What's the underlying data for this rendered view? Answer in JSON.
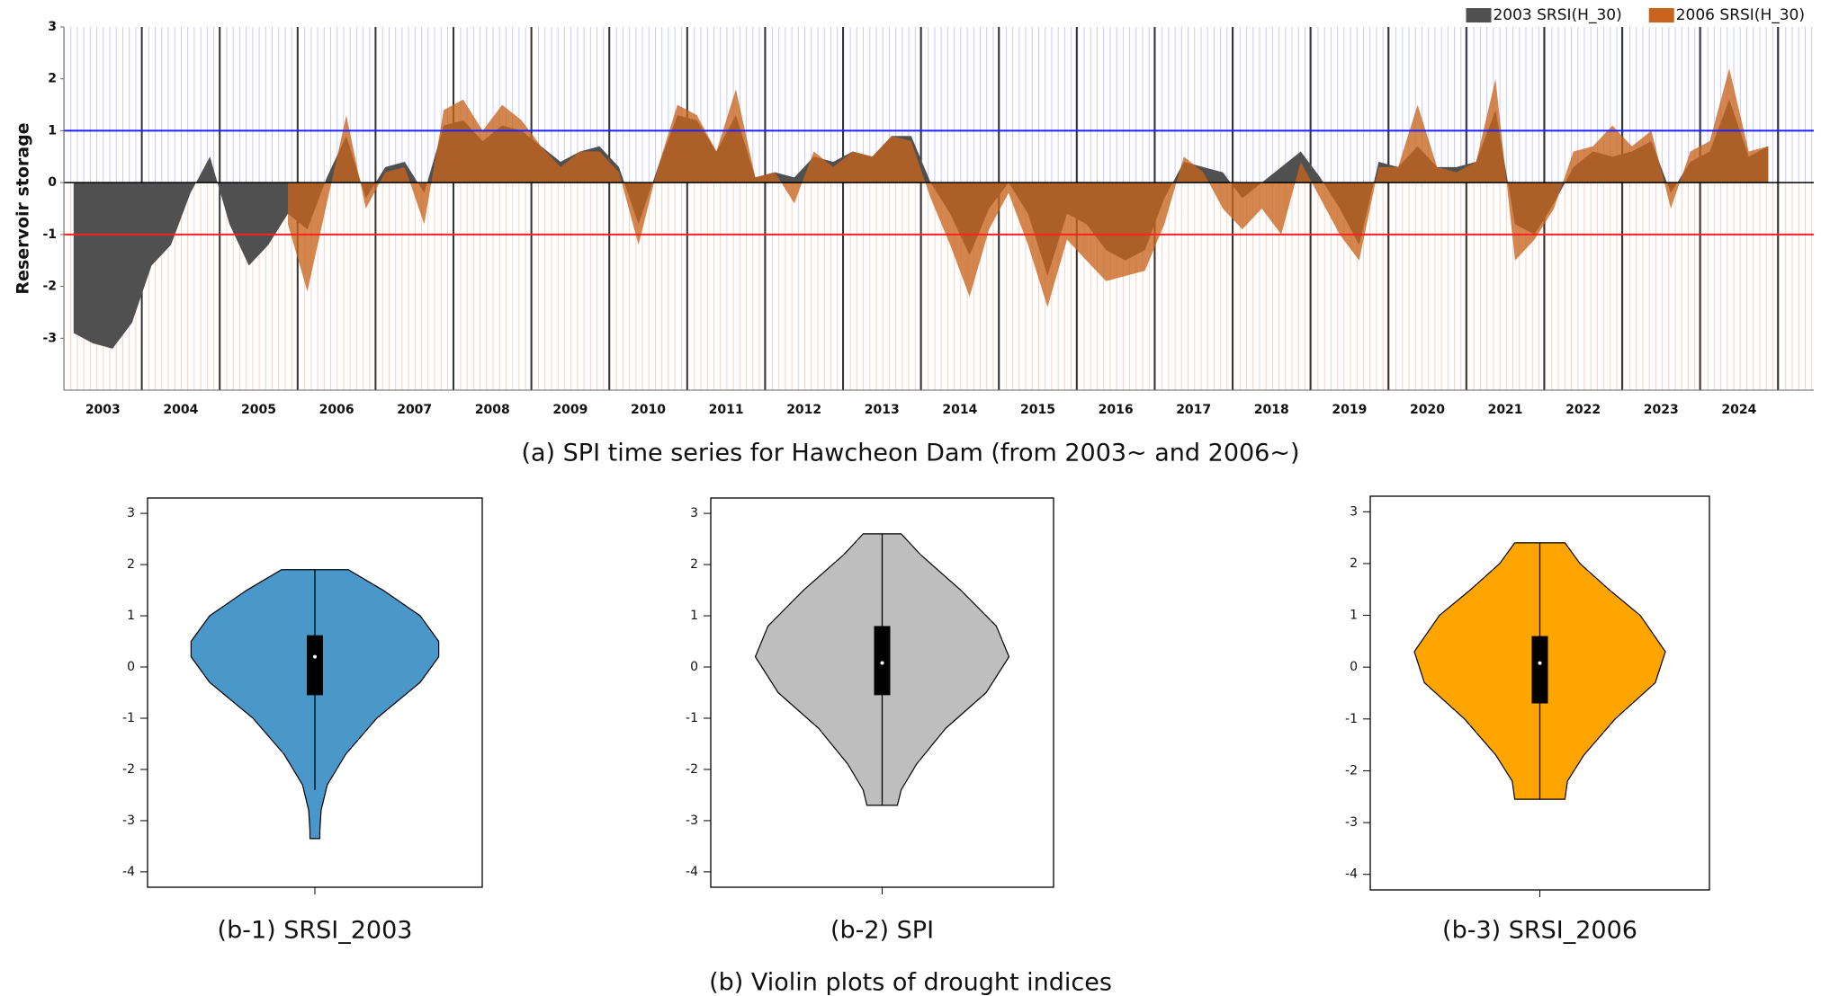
{
  "chart_data": [
    {
      "type": "area",
      "title": "(a) SPI time series for Hawcheon Dam (from 2003~ and 2006~)",
      "ylabel": "Reservoir storage",
      "xlim": [
        2003,
        2025.46
      ],
      "xticks": [
        {
          "value": 2003.5,
          "label": "2003"
        },
        {
          "value": 2004.5,
          "label": "2004"
        },
        {
          "value": 2005.5,
          "label": "2005"
        },
        {
          "value": 2006.5,
          "label": "2006"
        },
        {
          "value": 2007.5,
          "label": "2007"
        },
        {
          "value": 2008.5,
          "label": "2008"
        },
        {
          "value": 2009.5,
          "label": "2009"
        },
        {
          "value": 2010.5,
          "label": "2010"
        },
        {
          "value": 2011.5,
          "label": "2011"
        },
        {
          "value": 2012.5,
          "label": "2012"
        },
        {
          "value": 2013.5,
          "label": "2013"
        },
        {
          "value": 2014.5,
          "label": "2014"
        },
        {
          "value": 2015.5,
          "label": "2015"
        },
        {
          "value": 2016.5,
          "label": "2016"
        },
        {
          "value": 2017.5,
          "label": "2017"
        },
        {
          "value": 2018.5,
          "label": "2018"
        },
        {
          "value": 2019.5,
          "label": "2019"
        },
        {
          "value": 2020.5,
          "label": "2020"
        },
        {
          "value": 2021.5,
          "label": "2021"
        },
        {
          "value": 2022.5,
          "label": "2022"
        },
        {
          "value": 2023.5,
          "label": "2023"
        },
        {
          "value": 2024.5,
          "label": "2024"
        }
      ],
      "xgrid_major": [
        2004,
        2005,
        2006,
        2007,
        2008,
        2009,
        2010,
        2011,
        2012,
        2013,
        2014,
        2015,
        2016,
        2017,
        2018,
        2019,
        2020,
        2021,
        2022,
        2023,
        2024,
        2025
      ],
      "ylim": [
        -4,
        3
      ],
      "yticks": [
        -3,
        -2,
        -1,
        0,
        1,
        2,
        3
      ],
      "hlines": [
        {
          "value": 1,
          "color": "#2020ff"
        },
        {
          "value": -1,
          "color": "#ff2020"
        }
      ],
      "legend": "top-right",
      "x": [
        2003.125,
        2003.375,
        2003.625,
        2003.875,
        2004.125,
        2004.375,
        2004.625,
        2004.875,
        2005.125,
        2005.375,
        2005.625,
        2005.875,
        2006.125,
        2006.375,
        2006.625,
        2006.875,
        2007.125,
        2007.375,
        2007.625,
        2007.875,
        2008.125,
        2008.375,
        2008.625,
        2008.875,
        2009.125,
        2009.375,
        2009.625,
        2009.875,
        2010.125,
        2010.375,
        2010.625,
        2010.875,
        2011.125,
        2011.375,
        2011.625,
        2011.875,
        2012.125,
        2012.375,
        2012.625,
        2012.875,
        2013.125,
        2013.375,
        2013.625,
        2013.875,
        2014.125,
        2014.375,
        2014.625,
        2014.875,
        2015.125,
        2015.375,
        2015.625,
        2015.875,
        2016.125,
        2016.375,
        2016.625,
        2016.875,
        2017.125,
        2017.375,
        2017.625,
        2017.875,
        2018.125,
        2018.375,
        2018.625,
        2018.875,
        2019.125,
        2019.375,
        2019.625,
        2019.875,
        2020.125,
        2020.375,
        2020.625,
        2020.875,
        2021.125,
        2021.375,
        2021.625,
        2021.875,
        2022.125,
        2022.375,
        2022.625,
        2022.875,
        2023.125,
        2023.375,
        2023.625,
        2023.875,
        2024.125,
        2024.375,
        2024.625,
        2024.875
      ],
      "series": [
        {
          "name": "2003 SRSI(H_30)",
          "color": "#505050",
          "values": [
            -2.9,
            -3.1,
            -3.2,
            -2.7,
            -1.6,
            -1.2,
            -0.2,
            0.5,
            -0.8,
            -1.6,
            -1.2,
            -0.6,
            -0.9,
            0.1,
            0.9,
            -0.3,
            0.3,
            0.4,
            -0.2,
            1.1,
            1.2,
            0.8,
            1.1,
            1.0,
            0.7,
            0.4,
            0.6,
            0.7,
            0.3,
            -0.8,
            0.3,
            1.3,
            1.2,
            0.6,
            1.3,
            0.1,
            0.2,
            0.1,
            0.5,
            0.4,
            0.6,
            0.5,
            0.9,
            0.9,
            0.0,
            -0.6,
            -1.4,
            -0.5,
            0.0,
            -0.6,
            -1.8,
            -0.6,
            -0.8,
            -1.3,
            -1.5,
            -1.3,
            -0.3,
            0.4,
            0.3,
            0.2,
            -0.3,
            0.0,
            0.3,
            0.6,
            0.1,
            -0.5,
            -1.2,
            0.4,
            0.3,
            0.7,
            0.3,
            0.3,
            0.4,
            1.4,
            -0.8,
            -1.0,
            -0.4,
            0.3,
            0.6,
            0.5,
            0.6,
            0.8,
            -0.2,
            0.4,
            0.6,
            1.6,
            0.5,
            0.7
          ]
        },
        {
          "name": "2006 SRSI(H_30)",
          "color": "#c8641e",
          "values": [
            null,
            null,
            null,
            null,
            null,
            null,
            null,
            null,
            null,
            null,
            null,
            -0.8,
            -2.1,
            -0.4,
            1.3,
            -0.5,
            0.2,
            0.3,
            -0.8,
            1.4,
            1.6,
            1.0,
            1.5,
            1.2,
            0.7,
            0.3,
            0.6,
            0.6,
            0.2,
            -1.2,
            0.3,
            1.5,
            1.3,
            0.6,
            1.8,
            0.1,
            0.2,
            -0.4,
            0.6,
            0.3,
            0.6,
            0.5,
            0.9,
            0.8,
            -0.3,
            -1.2,
            -2.2,
            -0.9,
            -0.2,
            -1.2,
            -2.4,
            -1.1,
            -1.5,
            -1.9,
            -1.8,
            -1.7,
            -0.8,
            0.5,
            0.2,
            -0.5,
            -0.9,
            -0.5,
            -1.0,
            0.4,
            -0.3,
            -1.0,
            -1.5,
            0.3,
            0.3,
            1.5,
            0.3,
            0.2,
            0.4,
            2.0,
            -1.5,
            -1.1,
            -0.5,
            0.6,
            0.7,
            1.1,
            0.7,
            1.0,
            -0.5,
            0.6,
            0.8,
            2.2,
            0.6,
            0.7
          ]
        }
      ]
    },
    {
      "type": "violin",
      "title": "(b-1) SRSI_2003",
      "color": "#4a98c9",
      "ylim": [
        -4.3,
        3.3
      ],
      "yticks": [
        -4,
        -3,
        -2,
        -1,
        0,
        1,
        2,
        3
      ],
      "density_y": [
        1.9,
        1.5,
        1.0,
        0.5,
        0.2,
        -0.3,
        -1.0,
        -1.7,
        -2.3,
        -2.8,
        -3.2,
        -3.35
      ],
      "density_width": [
        0.27,
        0.55,
        0.85,
        1.0,
        1.0,
        0.85,
        0.5,
        0.25,
        0.1,
        0.05,
        0.04,
        0.04
      ],
      "min": -2.4,
      "q1": -0.55,
      "median": 0.2,
      "q3": 0.62,
      "max": 1.9
    },
    {
      "type": "violin",
      "title": "(b-2) SPI",
      "color": "#bebebe",
      "ylim": [
        -4.3,
        3.3
      ],
      "yticks": [
        -4,
        -3,
        -2,
        -1,
        0,
        1,
        2,
        3
      ],
      "density_y": [
        2.6,
        2.2,
        1.5,
        0.8,
        0.2,
        -0.5,
        -1.2,
        -1.9,
        -2.4,
        -2.7
      ],
      "density_width": [
        0.15,
        0.3,
        0.62,
        0.9,
        1.0,
        0.82,
        0.5,
        0.27,
        0.15,
        0.12
      ],
      "min": -2.7,
      "q1": -0.55,
      "median": 0.08,
      "q3": 0.8,
      "max": 2.6
    },
    {
      "type": "violin",
      "title": "(b-3) SRSI_2006",
      "color": "#ffa500",
      "ylim": [
        -4.3,
        3.3
      ],
      "yticks": [
        -4,
        -3,
        -2,
        -1,
        0,
        1,
        2,
        3
      ],
      "density_y": [
        2.4,
        2.0,
        1.5,
        1.0,
        0.3,
        -0.3,
        -1.0,
        -1.7,
        -2.2,
        -2.55
      ],
      "density_width": [
        0.2,
        0.32,
        0.55,
        0.8,
        1.0,
        0.92,
        0.6,
        0.35,
        0.22,
        0.2
      ],
      "min": -2.55,
      "q1": -0.7,
      "median": 0.08,
      "q3": 0.6,
      "max": 2.4
    }
  ],
  "caption": "(b) Violin plots of drought indices"
}
